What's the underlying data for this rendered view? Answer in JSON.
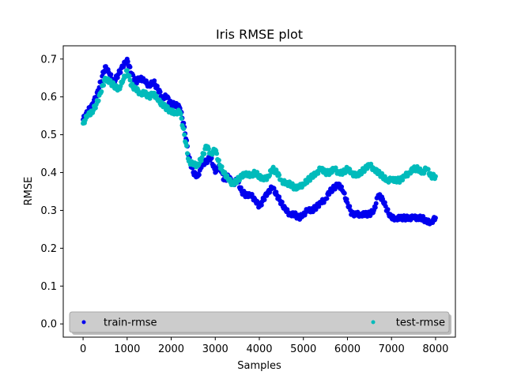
{
  "chart_data": {
    "type": "scatter",
    "title": "Iris RMSE plot",
    "xlabel": "Samples",
    "ylabel": "RMSE",
    "xlim": [
      -450,
      8450
    ],
    "ylim": [
      -0.035,
      0.735
    ],
    "xticks": [
      0,
      1000,
      2000,
      3000,
      4000,
      5000,
      6000,
      7000,
      8000
    ],
    "yticks": [
      0.0,
      0.1,
      0.2,
      0.3,
      0.4,
      0.5,
      0.6,
      0.7
    ],
    "grid": false,
    "legend": {
      "placement": "lower-center",
      "ncol": 2
    },
    "series": [
      {
        "name": "train-rmse",
        "color": "#0000ee",
        "points": [
          [
            0,
            0.54
          ],
          [
            100,
            0.56
          ],
          [
            200,
            0.58
          ],
          [
            300,
            0.6
          ],
          [
            400,
            0.64
          ],
          [
            500,
            0.68
          ],
          [
            600,
            0.66
          ],
          [
            700,
            0.64
          ],
          [
            800,
            0.66
          ],
          [
            900,
            0.68
          ],
          [
            1000,
            0.7
          ],
          [
            1100,
            0.66
          ],
          [
            1200,
            0.64
          ],
          [
            1300,
            0.65
          ],
          [
            1400,
            0.64
          ],
          [
            1500,
            0.63
          ],
          [
            1600,
            0.64
          ],
          [
            1700,
            0.62
          ],
          [
            1800,
            0.6
          ],
          [
            1900,
            0.6
          ],
          [
            2000,
            0.58
          ],
          [
            2100,
            0.58
          ],
          [
            2200,
            0.57
          ],
          [
            2300,
            0.52
          ],
          [
            2400,
            0.44
          ],
          [
            2500,
            0.4
          ],
          [
            2600,
            0.39
          ],
          [
            2700,
            0.42
          ],
          [
            2800,
            0.43
          ],
          [
            2900,
            0.44
          ],
          [
            3000,
            0.4
          ],
          [
            3100,
            0.42
          ],
          [
            3200,
            0.38
          ],
          [
            3300,
            0.39
          ],
          [
            3400,
            0.37
          ],
          [
            3500,
            0.38
          ],
          [
            3600,
            0.35
          ],
          [
            3700,
            0.34
          ],
          [
            3800,
            0.34
          ],
          [
            3900,
            0.33
          ],
          [
            4000,
            0.31
          ],
          [
            4100,
            0.33
          ],
          [
            4200,
            0.35
          ],
          [
            4300,
            0.36
          ],
          [
            4400,
            0.34
          ],
          [
            4500,
            0.32
          ],
          [
            4600,
            0.3
          ],
          [
            4700,
            0.29
          ],
          [
            4800,
            0.29
          ],
          [
            4900,
            0.28
          ],
          [
            5000,
            0.29
          ],
          [
            5100,
            0.3
          ],
          [
            5200,
            0.3
          ],
          [
            5300,
            0.31
          ],
          [
            5400,
            0.32
          ],
          [
            5500,
            0.33
          ],
          [
            5600,
            0.35
          ],
          [
            5700,
            0.36
          ],
          [
            5800,
            0.37
          ],
          [
            5900,
            0.35
          ],
          [
            6000,
            0.32
          ],
          [
            6100,
            0.29
          ],
          [
            6200,
            0.29
          ],
          [
            6300,
            0.29
          ],
          [
            6400,
            0.29
          ],
          [
            6500,
            0.29
          ],
          [
            6600,
            0.3
          ],
          [
            6700,
            0.34
          ],
          [
            6800,
            0.33
          ],
          [
            6900,
            0.3
          ],
          [
            7000,
            0.28
          ],
          [
            7100,
            0.28
          ],
          [
            7200,
            0.28
          ],
          [
            7300,
            0.28
          ],
          [
            7400,
            0.28
          ],
          [
            7500,
            0.28
          ],
          [
            7600,
            0.28
          ],
          [
            7700,
            0.28
          ],
          [
            7800,
            0.27
          ],
          [
            7900,
            0.27
          ],
          [
            8000,
            0.28
          ]
        ]
      },
      {
        "name": "test-rmse",
        "color": "#00bbbb",
        "points": [
          [
            0,
            0.53
          ],
          [
            100,
            0.55
          ],
          [
            200,
            0.56
          ],
          [
            300,
            0.58
          ],
          [
            400,
            0.61
          ],
          [
            500,
            0.65
          ],
          [
            600,
            0.64
          ],
          [
            700,
            0.63
          ],
          [
            800,
            0.62
          ],
          [
            900,
            0.64
          ],
          [
            1000,
            0.67
          ],
          [
            1100,
            0.63
          ],
          [
            1200,
            0.62
          ],
          [
            1300,
            0.61
          ],
          [
            1400,
            0.61
          ],
          [
            1500,
            0.6
          ],
          [
            1600,
            0.61
          ],
          [
            1700,
            0.59
          ],
          [
            1800,
            0.58
          ],
          [
            1900,
            0.57
          ],
          [
            2000,
            0.56
          ],
          [
            2100,
            0.56
          ],
          [
            2200,
            0.56
          ],
          [
            2300,
            0.5
          ],
          [
            2400,
            0.43
          ],
          [
            2500,
            0.42
          ],
          [
            2600,
            0.42
          ],
          [
            2700,
            0.44
          ],
          [
            2800,
            0.47
          ],
          [
            2900,
            0.45
          ],
          [
            3000,
            0.46
          ],
          [
            3100,
            0.42
          ],
          [
            3200,
            0.4
          ],
          [
            3300,
            0.38
          ],
          [
            3400,
            0.37
          ],
          [
            3500,
            0.38
          ],
          [
            3600,
            0.39
          ],
          [
            3700,
            0.4
          ],
          [
            3800,
            0.39
          ],
          [
            3900,
            0.4
          ],
          [
            4000,
            0.39
          ],
          [
            4100,
            0.38
          ],
          [
            4200,
            0.39
          ],
          [
            4300,
            0.41
          ],
          [
            4400,
            0.4
          ],
          [
            4500,
            0.38
          ],
          [
            4600,
            0.37
          ],
          [
            4700,
            0.37
          ],
          [
            4800,
            0.36
          ],
          [
            4900,
            0.36
          ],
          [
            5000,
            0.37
          ],
          [
            5100,
            0.38
          ],
          [
            5200,
            0.39
          ],
          [
            5300,
            0.4
          ],
          [
            5400,
            0.41
          ],
          [
            5500,
            0.4
          ],
          [
            5600,
            0.4
          ],
          [
            5700,
            0.41
          ],
          [
            5800,
            0.4
          ],
          [
            5900,
            0.4
          ],
          [
            6000,
            0.41
          ],
          [
            6100,
            0.4
          ],
          [
            6200,
            0.39
          ],
          [
            6300,
            0.4
          ],
          [
            6400,
            0.41
          ],
          [
            6500,
            0.42
          ],
          [
            6600,
            0.41
          ],
          [
            6700,
            0.4
          ],
          [
            6800,
            0.39
          ],
          [
            6900,
            0.38
          ],
          [
            7000,
            0.38
          ],
          [
            7100,
            0.38
          ],
          [
            7200,
            0.38
          ],
          [
            7300,
            0.39
          ],
          [
            7400,
            0.4
          ],
          [
            7500,
            0.41
          ],
          [
            7600,
            0.41
          ],
          [
            7700,
            0.4
          ],
          [
            7800,
            0.41
          ],
          [
            7900,
            0.39
          ],
          [
            8000,
            0.39
          ]
        ]
      }
    ]
  }
}
